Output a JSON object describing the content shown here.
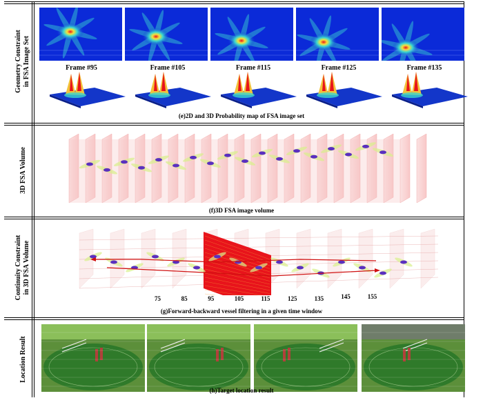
{
  "rows": [
    {
      "label_line1": "Geometry Constraint",
      "label_line2": "in FSA Image Set"
    },
    {
      "label_line1": "3D FSA Volume",
      "label_line2": ""
    },
    {
      "label_line1": "Continuity Constraint",
      "label_line2": "in 3D FSA Volume"
    },
    {
      "label_line1": "Location Result",
      "label_line2": ""
    }
  ],
  "frames": [
    {
      "label": "Frame #95"
    },
    {
      "label": "Frame #105"
    },
    {
      "label": "Frame #115"
    },
    {
      "label": "Frame #125"
    },
    {
      "label": "Frame #135"
    }
  ],
  "captions": {
    "e": "(e)2D and 3D Probability map of FSA image set",
    "f": "(f)3D FSA image volume",
    "g": "(g)Forward-backward vessel filtering in a given time window",
    "h": "(h)Target location result"
  },
  "time_axis_ticks": [
    "75",
    "85",
    "95",
    "105",
    "115",
    "125",
    "135",
    "145",
    "155"
  ],
  "colors": {
    "heat_low": "#0b2ad8",
    "heat_high": "#e8141b",
    "grass": "#2f7a2a"
  }
}
